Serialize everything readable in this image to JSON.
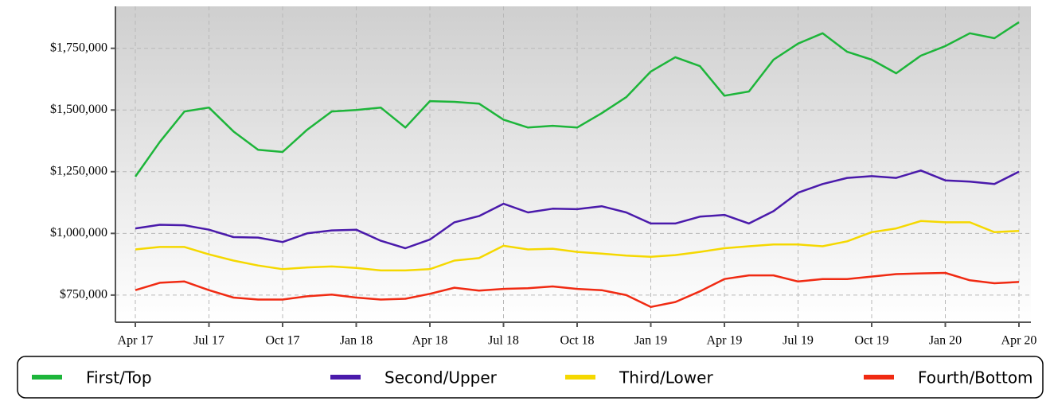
{
  "chart_data": {
    "type": "line",
    "categories": [
      "Apr 17",
      null,
      null,
      "Jul 17",
      null,
      null,
      "Oct 17",
      null,
      null,
      "Jan 18",
      null,
      null,
      "Apr 18",
      null,
      null,
      "Jul 18",
      null,
      null,
      "Oct 18",
      null,
      null,
      "Jan 19",
      null,
      null,
      "Apr 19",
      null,
      null,
      "Jul 19",
      null,
      null,
      "Oct 19",
      null,
      null,
      "Jan 20",
      null,
      null,
      "Apr 20"
    ],
    "series": [
      {
        "name": "First/Top",
        "color": "#1db53a",
        "values": [
          1230000,
          1371000,
          1494000,
          1510000,
          1413000,
          1339000,
          1330000,
          1420000,
          1494000,
          1500000,
          1510000,
          1429000,
          1536000,
          1533000,
          1526000,
          1461000,
          1429000,
          1436000,
          1429000,
          1487000,
          1552000,
          1656000,
          1714000,
          1678000,
          1558000,
          1575000,
          1704000,
          1769000,
          1811000,
          1736000,
          1704000,
          1649000,
          1720000,
          1759000,
          1811000,
          1791000,
          1856000
        ]
      },
      {
        "name": "Second/Upper",
        "color": "#4a1aab",
        "values": [
          1020000,
          1035000,
          1033000,
          1015000,
          985000,
          983000,
          965000,
          1000000,
          1012000,
          1015000,
          970000,
          940000,
          975000,
          1045000,
          1070000,
          1120000,
          1085000,
          1100000,
          1098000,
          1110000,
          1085000,
          1040000,
          1040000,
          1068000,
          1075000,
          1040000,
          1090000,
          1165000,
          1200000,
          1225000,
          1232000,
          1225000,
          1255000,
          1215000,
          1210000,
          1200000,
          1250000
        ]
      },
      {
        "name": "Third/Lower",
        "color": "#f5d800",
        "values": [
          935000,
          945000,
          945000,
          915000,
          890000,
          870000,
          855000,
          862000,
          866000,
          860000,
          850000,
          850000,
          855000,
          890000,
          900000,
          950000,
          935000,
          938000,
          925000,
          918000,
          910000,
          905000,
          912000,
          925000,
          940000,
          948000,
          955000,
          955000,
          948000,
          968000,
          1005000,
          1020000,
          1050000,
          1045000,
          1045000,
          1005000,
          1010000
        ]
      },
      {
        "name": "Fourth/Bottom",
        "color": "#f02a12",
        "values": [
          770000,
          800000,
          805000,
          770000,
          740000,
          732000,
          732000,
          745000,
          752000,
          740000,
          732000,
          735000,
          755000,
          780000,
          768000,
          775000,
          778000,
          785000,
          775000,
          770000,
          750000,
          702000,
          722000,
          765000,
          815000,
          830000,
          830000,
          805000,
          815000,
          815000,
          825000,
          835000,
          838000,
          840000,
          810000,
          798000,
          803000
        ]
      }
    ],
    "ylim": [
      640000,
      1920000
    ],
    "yticks": [
      {
        "value": 750000,
        "label": "$750,000"
      },
      {
        "value": 1000000,
        "label": "$1,000,000"
      },
      {
        "value": 1250000,
        "label": "$1,250,000"
      },
      {
        "value": 1500000,
        "label": "$1,500,000"
      },
      {
        "value": 1750000,
        "label": "$1,750,000"
      }
    ],
    "grid": true,
    "legend": "bottom"
  }
}
